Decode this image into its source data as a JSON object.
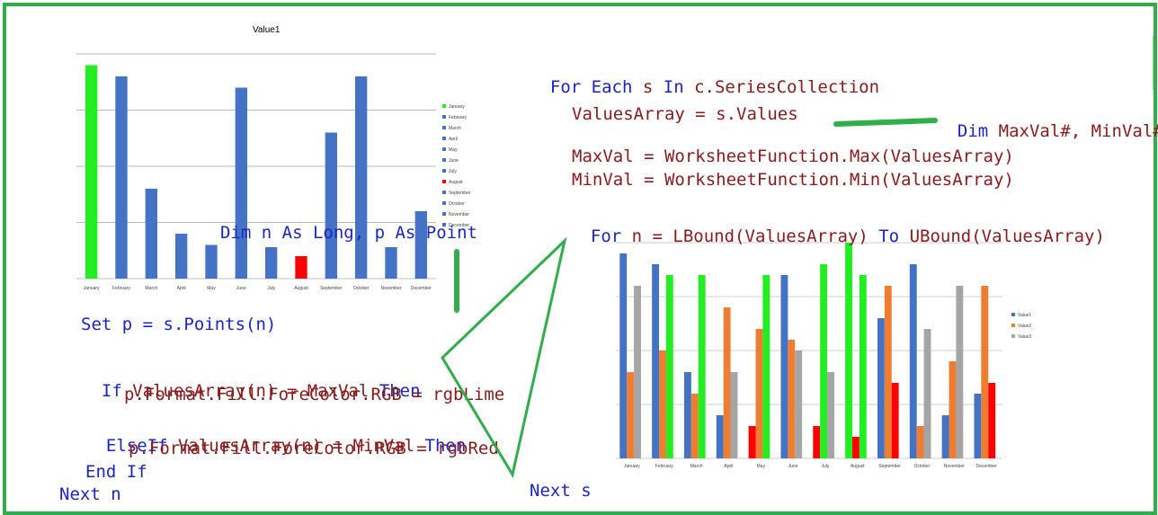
{
  "chart_data": [
    {
      "type": "bar",
      "title": "Value1",
      "categories": [
        "January",
        "February",
        "March",
        "April",
        "May",
        "June",
        "July",
        "August",
        "September",
        "October",
        "November",
        "December"
      ],
      "values": [
        19,
        18,
        8,
        4,
        3,
        17,
        2.8,
        2,
        13,
        18,
        2.8,
        6
      ],
      "highlight": {
        "max_color": "#22ee22",
        "min_color": "#ff0000",
        "default_color": "#4472c4"
      },
      "ylim": [
        0,
        20
      ]
    },
    {
      "type": "bar",
      "title": "",
      "categories": [
        "January",
        "February",
        "March",
        "April",
        "May",
        "June",
        "July",
        "August",
        "September",
        "October",
        "November",
        "December"
      ],
      "series": [
        {
          "name": "Value1",
          "values": [
            19,
            18,
            8,
            4,
            3,
            17,
            3,
            20,
            13,
            18,
            4,
            6
          ]
        },
        {
          "name": "Value2",
          "values": [
            8,
            10,
            6,
            14,
            12,
            11,
            18,
            2,
            16,
            3,
            9,
            16
          ]
        },
        {
          "name": "Value3",
          "values": [
            16,
            17,
            17,
            8,
            17,
            10,
            8,
            17,
            7,
            12,
            16,
            7
          ]
        }
      ],
      "highlight_colors": [
        "#22ee22",
        "#ff0000"
      ],
      "series_colors": [
        "#4472c4",
        "#ed7d31",
        "#a5a5a5"
      ],
      "ylim": [
        0,
        20
      ]
    }
  ],
  "code": {
    "dim_n": [
      "Dim n As Long, p As Point"
    ],
    "set_p": "Set p = s.Points(n)",
    "if_line": "If ValuesArray(n) = MaxVal Then",
    "lime_line": "p.Format.Fill.ForeColor.RGB = rgbLime",
    "elseif_line": "ElseIf ValuesArray(n) = MinVal Then",
    "red_line": "p.Format.Fill.ForeColor.RGB = rgbRed",
    "endif_line": "End If",
    "next_n": "Next n",
    "for_each": "For Each s In c.SeriesCollection",
    "values_line": "ValuesArray = s.Values",
    "dim_max": "Dim MaxVal#, MinVal#",
    "maxval_line": "MaxVal = WorksheetFunction.Max(ValuesArray)",
    "minval_line": "MinVal = WorksheetFunction.Min(ValuesArray)",
    "for_n": "For n = LBound(ValuesArray) To UBound(ValuesArray)",
    "next_s": "Next s"
  }
}
